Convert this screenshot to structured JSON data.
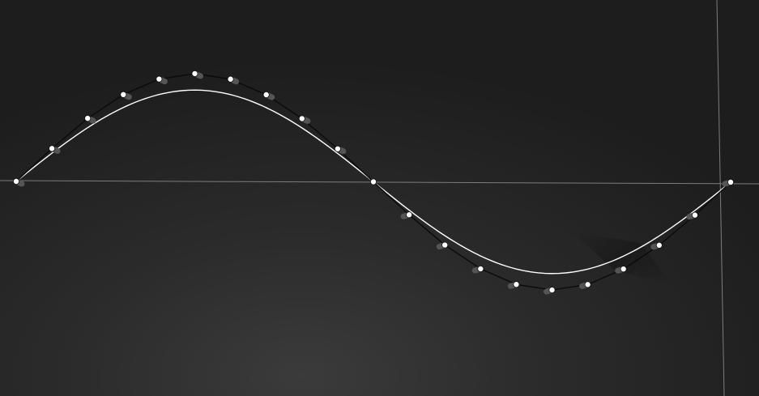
{
  "viewport": {
    "background": "#232323",
    "grid_axis_color": "#7d7d7d"
  },
  "curve": {
    "type": "sine",
    "cycles": 1,
    "reference_curve_color": "#ffffff",
    "control_polyline_color": "#0a0a0a",
    "handle_color": "#ffffff",
    "handle_stem_color": "#555555",
    "control_point_count": 21,
    "points": [
      {
        "t": 0.0,
        "y": 0.0
      },
      {
        "t": 0.05,
        "y": 0.36
      },
      {
        "t": 0.1,
        "y": 0.69
      },
      {
        "t": 0.15,
        "y": 0.95
      },
      {
        "t": 0.2,
        "y": 1.12
      },
      {
        "t": 0.25,
        "y": 1.18
      },
      {
        "t": 0.3,
        "y": 1.12
      },
      {
        "t": 0.35,
        "y": 0.95
      },
      {
        "t": 0.4,
        "y": 0.69
      },
      {
        "t": 0.45,
        "y": 0.36
      },
      {
        "t": 0.5,
        "y": 0.0
      },
      {
        "t": 0.55,
        "y": -0.36
      },
      {
        "t": 0.6,
        "y": -0.69
      },
      {
        "t": 0.65,
        "y": -0.95
      },
      {
        "t": 0.7,
        "y": -1.12
      },
      {
        "t": 0.75,
        "y": -1.18
      },
      {
        "t": 0.8,
        "y": -1.12
      },
      {
        "t": 0.85,
        "y": -0.95
      },
      {
        "t": 0.9,
        "y": -0.69
      },
      {
        "t": 0.95,
        "y": -0.36
      },
      {
        "t": 1.0,
        "y": 0.0
      }
    ]
  }
}
